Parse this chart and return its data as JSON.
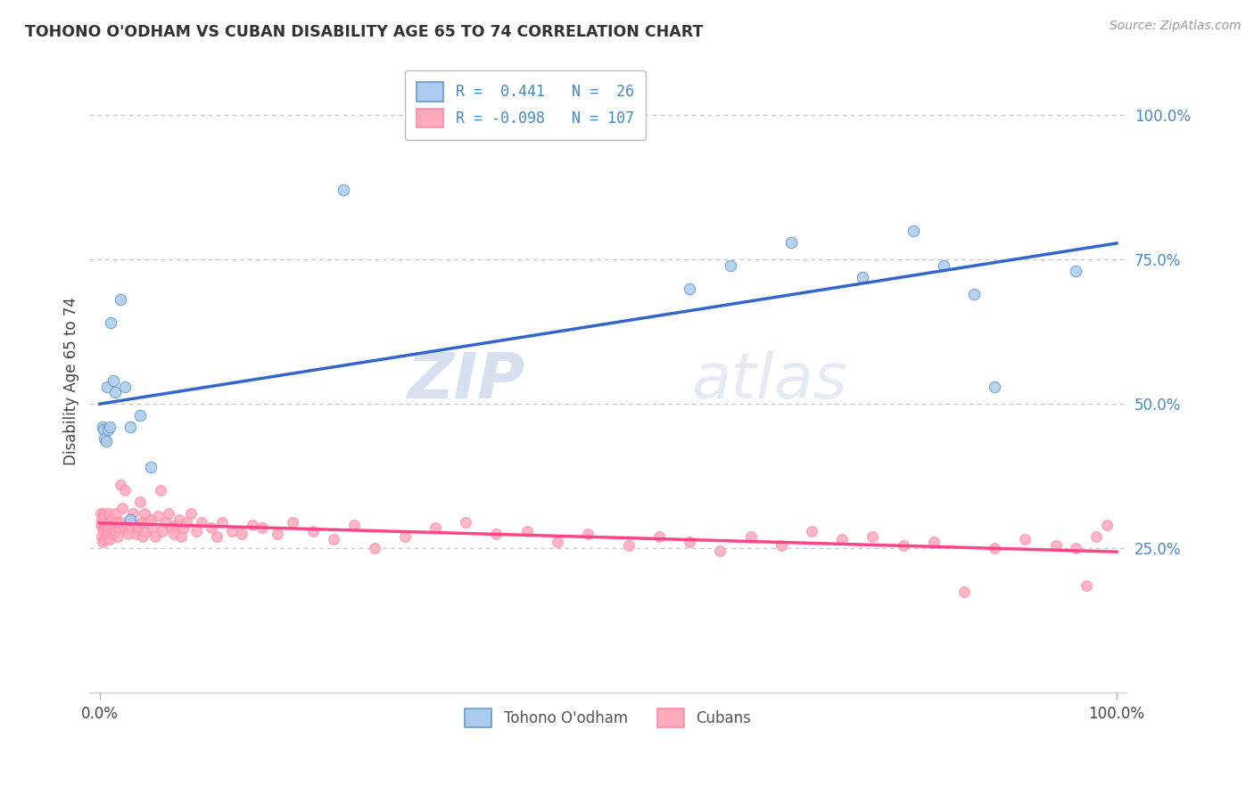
{
  "title": "TOHONO O'ODHAM VS CUBAN DISABILITY AGE 65 TO 74 CORRELATION CHART",
  "source": "Source: ZipAtlas.com",
  "ylabel": "Disability Age 65 to 74",
  "r_tohono": 0.441,
  "n_tohono": 26,
  "r_cubans": -0.098,
  "n_cubans": 107,
  "legend_label_1": "Tohono O'odham",
  "legend_label_2": "Cubans",
  "ytick_labels": [
    "25.0%",
    "50.0%",
    "75.0%",
    "100.0%"
  ],
  "ytick_values": [
    0.25,
    0.5,
    0.75,
    1.0
  ],
  "blue_scatter_face": "#AACCEE",
  "blue_scatter_edge": "#6699CC",
  "pink_scatter_face": "#FFAABB",
  "pink_scatter_edge": "#FF88AA",
  "line_blue": "#3366CC",
  "line_pink": "#FF4488",
  "watermark_color": "#DDEEFF",
  "bg_color": "#FFFFFF",
  "grid_color": "#BBBBCC",
  "tohono_x": [
    0.003,
    0.004,
    0.005,
    0.006,
    0.007,
    0.008,
    0.01,
    0.011,
    0.013,
    0.015,
    0.02,
    0.025,
    0.03,
    0.03,
    0.04,
    0.05,
    0.24,
    0.58,
    0.62,
    0.68,
    0.75,
    0.8,
    0.83,
    0.86,
    0.88,
    0.96
  ],
  "tohono_y": [
    0.46,
    0.455,
    0.44,
    0.435,
    0.53,
    0.455,
    0.46,
    0.64,
    0.54,
    0.52,
    0.68,
    0.53,
    0.46,
    0.3,
    0.48,
    0.39,
    0.87,
    0.7,
    0.74,
    0.78,
    0.72,
    0.8,
    0.74,
    0.69,
    0.53,
    0.73
  ],
  "cubans_x": [
    0.001,
    0.001,
    0.002,
    0.002,
    0.003,
    0.003,
    0.003,
    0.004,
    0.004,
    0.005,
    0.005,
    0.005,
    0.006,
    0.006,
    0.007,
    0.007,
    0.008,
    0.008,
    0.009,
    0.009,
    0.01,
    0.01,
    0.011,
    0.012,
    0.013,
    0.014,
    0.015,
    0.016,
    0.017,
    0.018,
    0.019,
    0.02,
    0.021,
    0.022,
    0.024,
    0.025,
    0.027,
    0.028,
    0.03,
    0.032,
    0.033,
    0.035,
    0.036,
    0.038,
    0.04,
    0.041,
    0.042,
    0.044,
    0.045,
    0.047,
    0.05,
    0.052,
    0.055,
    0.057,
    0.06,
    0.062,
    0.065,
    0.068,
    0.07,
    0.073,
    0.075,
    0.078,
    0.08,
    0.083,
    0.085,
    0.09,
    0.095,
    0.1,
    0.11,
    0.115,
    0.12,
    0.13,
    0.14,
    0.15,
    0.16,
    0.175,
    0.19,
    0.21,
    0.23,
    0.25,
    0.27,
    0.3,
    0.33,
    0.36,
    0.39,
    0.42,
    0.45,
    0.48,
    0.52,
    0.55,
    0.58,
    0.61,
    0.64,
    0.67,
    0.7,
    0.73,
    0.76,
    0.79,
    0.82,
    0.85,
    0.88,
    0.91,
    0.94,
    0.96,
    0.97,
    0.98,
    0.99
  ],
  "cubans_y": [
    0.29,
    0.31,
    0.27,
    0.3,
    0.285,
    0.295,
    0.26,
    0.28,
    0.31,
    0.265,
    0.29,
    0.305,
    0.285,
    0.295,
    0.275,
    0.3,
    0.285,
    0.27,
    0.295,
    0.31,
    0.265,
    0.29,
    0.285,
    0.3,
    0.275,
    0.29,
    0.28,
    0.31,
    0.295,
    0.27,
    0.285,
    0.36,
    0.295,
    0.32,
    0.285,
    0.35,
    0.29,
    0.275,
    0.3,
    0.285,
    0.31,
    0.29,
    0.275,
    0.285,
    0.33,
    0.295,
    0.27,
    0.31,
    0.28,
    0.295,
    0.3,
    0.285,
    0.27,
    0.305,
    0.35,
    0.28,
    0.295,
    0.31,
    0.285,
    0.275,
    0.29,
    0.3,
    0.27,
    0.285,
    0.295,
    0.31,
    0.28,
    0.295,
    0.285,
    0.27,
    0.295,
    0.28,
    0.275,
    0.29,
    0.285,
    0.275,
    0.295,
    0.28,
    0.265,
    0.29,
    0.25,
    0.27,
    0.285,
    0.295,
    0.275,
    0.28,
    0.26,
    0.275,
    0.255,
    0.27,
    0.26,
    0.245,
    0.27,
    0.255,
    0.28,
    0.265,
    0.27,
    0.255,
    0.26,
    0.175,
    0.25,
    0.265,
    0.255,
    0.25,
    0.185,
    0.27,
    0.29
  ],
  "watermark": "ZIPatlas"
}
